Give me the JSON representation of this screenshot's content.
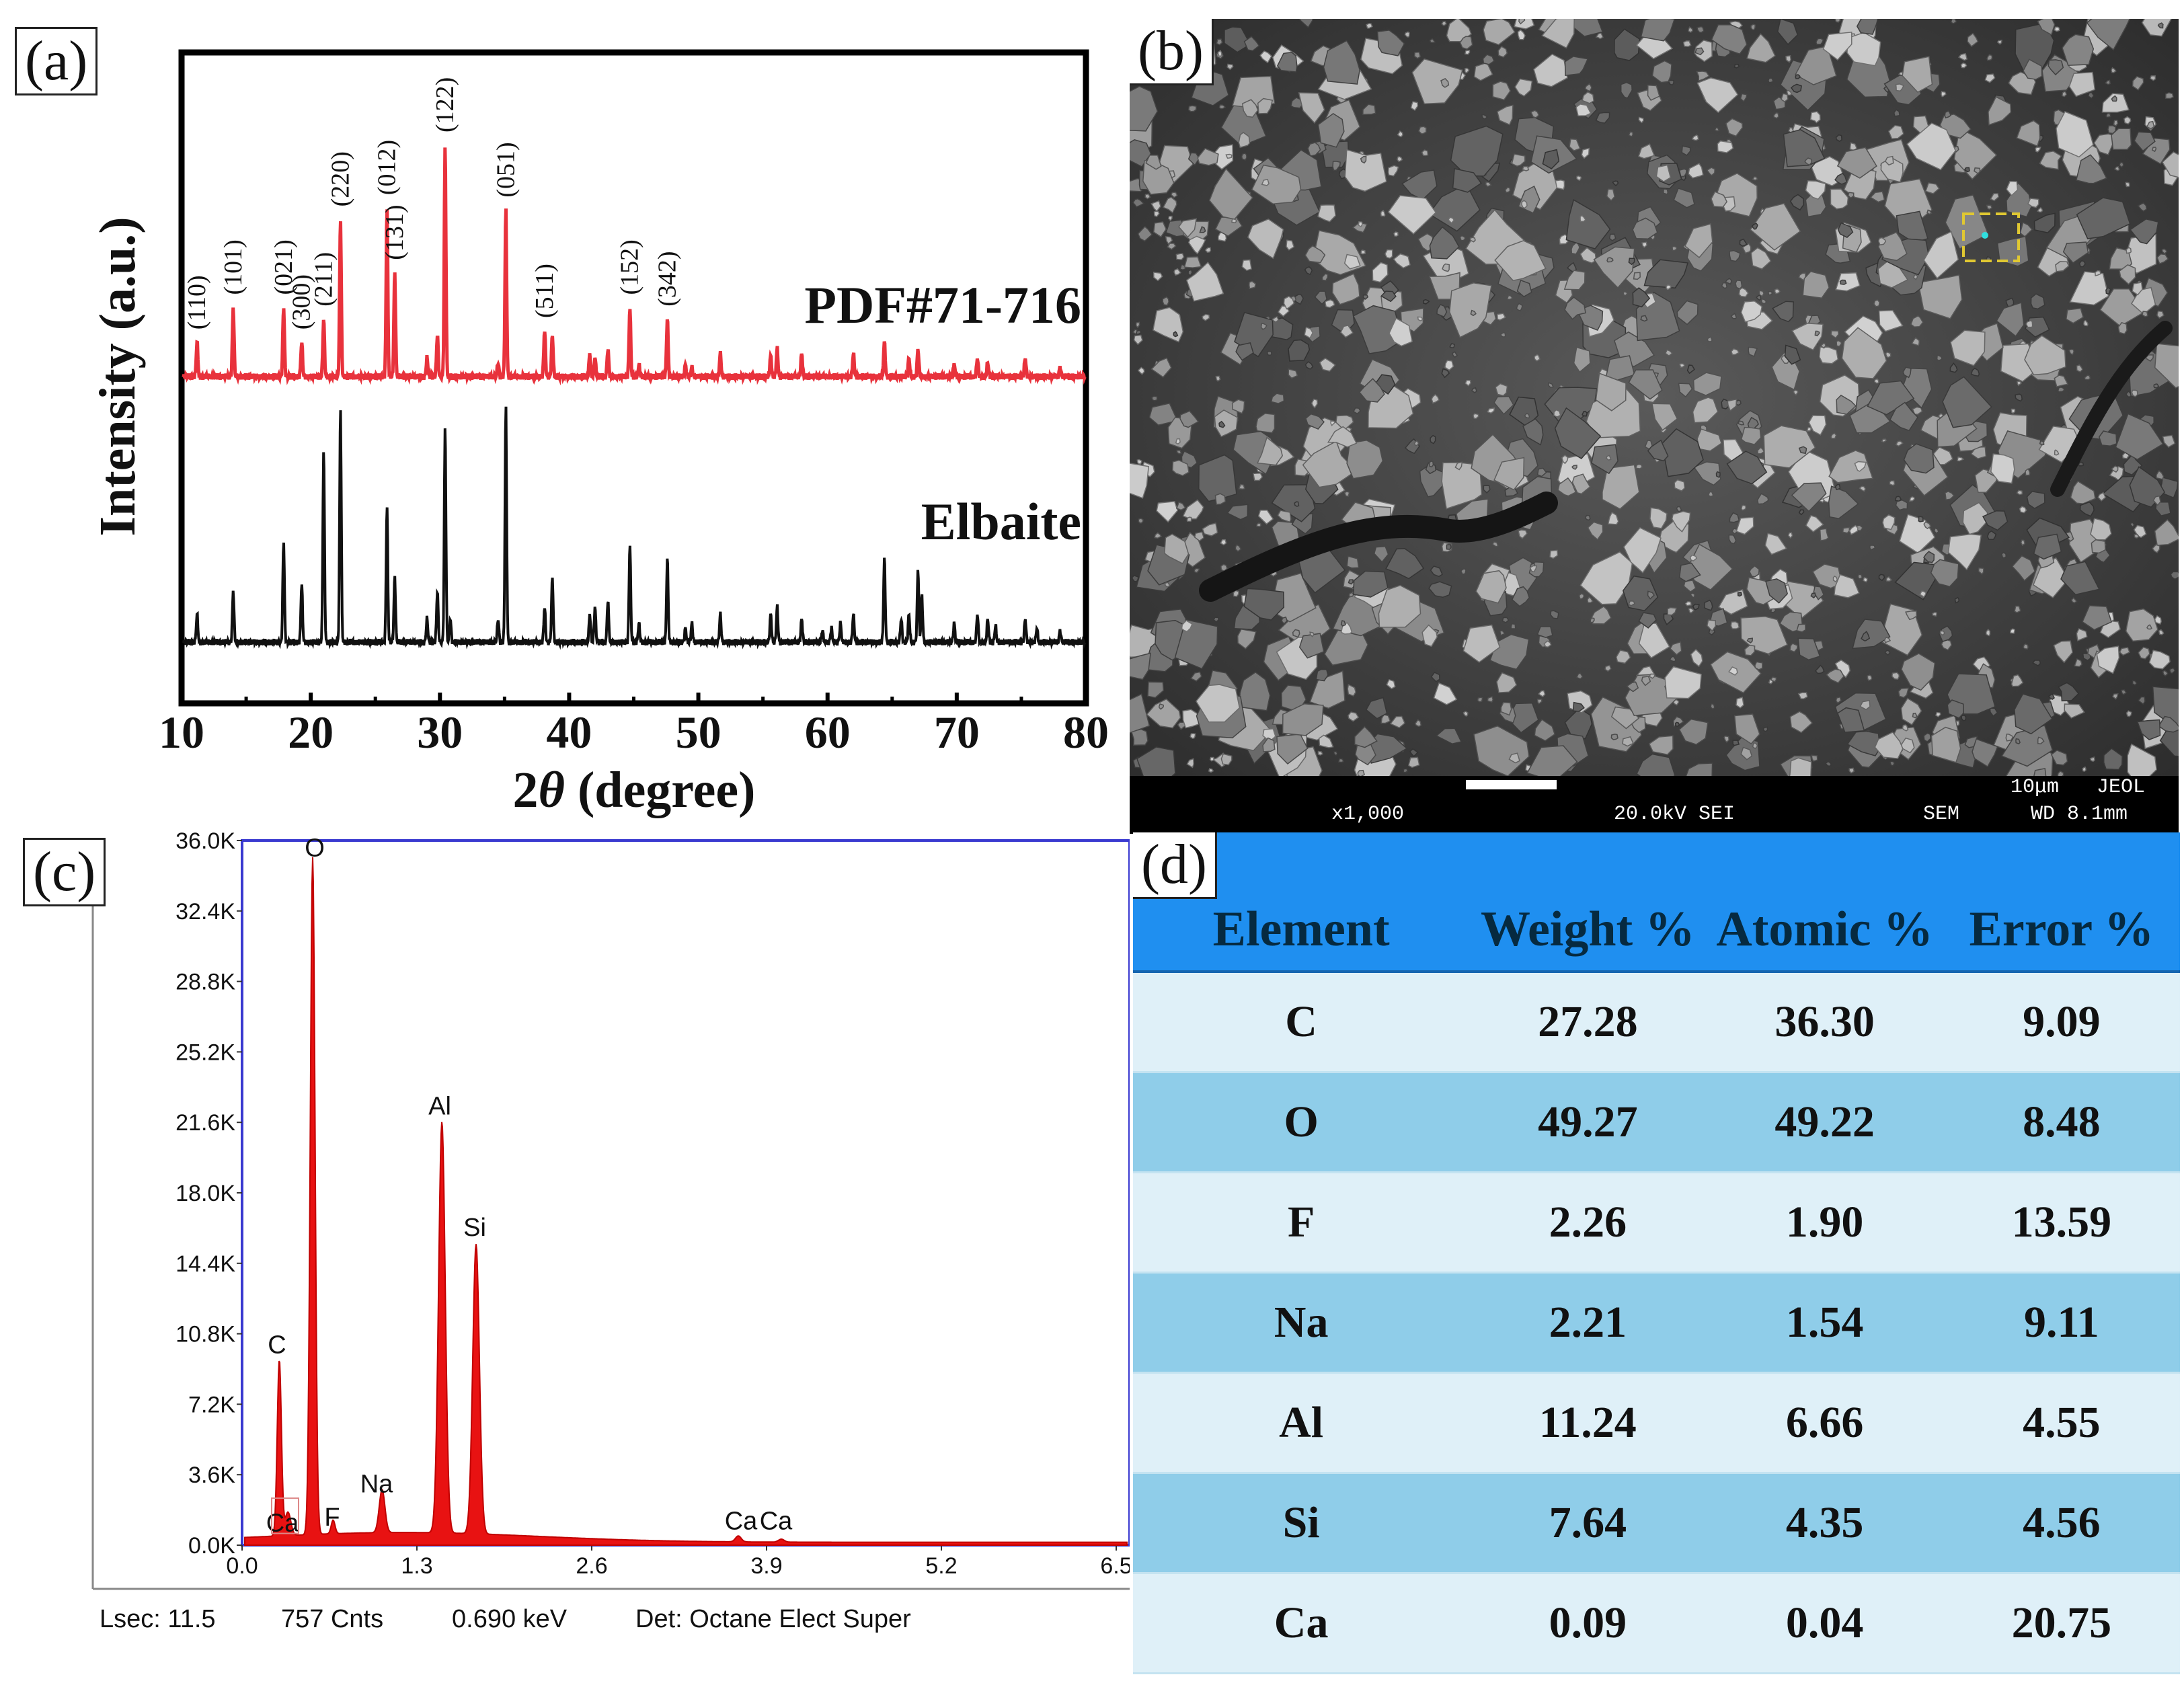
{
  "panel_labels": {
    "a": "(a)",
    "b": "(b)",
    "c": "(c)",
    "d": "(d)"
  },
  "colors": {
    "pdf_line": "#e8323c",
    "elbaite_line": "#111111",
    "eds_fill": "#e81212",
    "eds_frame": "#3a3ad0",
    "table_header": "#1f8ff0",
    "table_band": "#8fcde9",
    "table_light": "#dff0f8"
  },
  "chart_data": [
    {
      "type": "line",
      "id": "xrd",
      "xlabel": "2θ (degree)",
      "xlabel_parts": {
        "num": "2",
        "theta": "θ",
        "rest": " (degree)"
      },
      "ylabel": "Intensity (a.u.)",
      "xlim": [
        10,
        80
      ],
      "xticks": [
        "10",
        "20",
        "30",
        "40",
        "50",
        "60",
        "70",
        "80"
      ],
      "grid": false,
      "series": [
        {
          "name": "PDF#71-716",
          "color": "#e8323c",
          "baseline": 0.0,
          "peaks": [
            [
              11.2,
              0.15
            ],
            [
              14.0,
              0.3
            ],
            [
              17.9,
              0.3
            ],
            [
              19.3,
              0.15
            ],
            [
              21.0,
              0.25
            ],
            [
              22.3,
              0.68
            ],
            [
              25.9,
              0.73
            ],
            [
              26.5,
              0.45
            ],
            [
              29.0,
              0.08
            ],
            [
              29.8,
              0.18
            ],
            [
              30.4,
              1.0
            ],
            [
              34.5,
              0.06
            ],
            [
              35.1,
              0.72
            ],
            [
              38.1,
              0.2
            ],
            [
              38.7,
              0.18
            ],
            [
              41.6,
              0.1
            ],
            [
              42.0,
              0.08
            ],
            [
              43.0,
              0.12
            ],
            [
              44.7,
              0.3
            ],
            [
              45.4,
              0.05
            ],
            [
              47.6,
              0.25
            ],
            [
              49.0,
              0.05
            ],
            [
              49.5,
              0.04
            ],
            [
              51.7,
              0.1
            ],
            [
              55.6,
              0.09
            ],
            [
              56.1,
              0.12
            ],
            [
              58.0,
              0.1
            ],
            [
              62.0,
              0.1
            ],
            [
              64.4,
              0.15
            ],
            [
              66.3,
              0.08
            ],
            [
              67.0,
              0.12
            ],
            [
              69.8,
              0.05
            ],
            [
              71.6,
              0.08
            ],
            [
              72.4,
              0.06
            ],
            [
              75.3,
              0.08
            ],
            [
              78.0,
              0.04
            ]
          ],
          "miller_labels": [
            {
              "hkl": "(110)",
              "x": 11.2
            },
            {
              "hkl": "(101)",
              "x": 14.0
            },
            {
              "hkl": "(021)",
              "x": 17.9
            },
            {
              "hkl": "(300)",
              "x": 19.3
            },
            {
              "hkl": "(211)",
              "x": 21.0
            },
            {
              "hkl": "(220)",
              "x": 22.3
            },
            {
              "hkl": "(012)",
              "x": 25.9
            },
            {
              "hkl": "(131)",
              "x": 26.5
            },
            {
              "hkl": "(122)",
              "x": 30.4
            },
            {
              "hkl": "(051)",
              "x": 35.1
            },
            {
              "hkl": "(511)",
              "x": 38.1
            },
            {
              "hkl": "(152)",
              "x": 44.7
            },
            {
              "hkl": "(342)",
              "x": 47.6
            }
          ]
        },
        {
          "name": "Elbaite",
          "color": "#111111",
          "baseline": 0.0,
          "peaks": [
            [
              11.2,
              0.12
            ],
            [
              14.0,
              0.22
            ],
            [
              17.9,
              0.43
            ],
            [
              19.3,
              0.25
            ],
            [
              21.0,
              0.82
            ],
            [
              22.3,
              1.0
            ],
            [
              25.9,
              0.58
            ],
            [
              26.5,
              0.28
            ],
            [
              29.0,
              0.1
            ],
            [
              29.8,
              0.22
            ],
            [
              30.4,
              0.92
            ],
            [
              30.8,
              0.1
            ],
            [
              34.5,
              0.1
            ],
            [
              35.1,
              1.0
            ],
            [
              38.1,
              0.15
            ],
            [
              38.7,
              0.28
            ],
            [
              41.6,
              0.12
            ],
            [
              42.0,
              0.15
            ],
            [
              43.0,
              0.18
            ],
            [
              44.7,
              0.42
            ],
            [
              45.4,
              0.08
            ],
            [
              47.6,
              0.36
            ],
            [
              49.0,
              0.06
            ],
            [
              49.5,
              0.08
            ],
            [
              51.7,
              0.12
            ],
            [
              55.6,
              0.12
            ],
            [
              56.1,
              0.15
            ],
            [
              58.0,
              0.1
            ],
            [
              59.6,
              0.05
            ],
            [
              60.3,
              0.06
            ],
            [
              61.0,
              0.08
            ],
            [
              62.0,
              0.12
            ],
            [
              64.4,
              0.36
            ],
            [
              65.7,
              0.1
            ],
            [
              66.3,
              0.12
            ],
            [
              67.0,
              0.31
            ],
            [
              67.3,
              0.2
            ],
            [
              69.8,
              0.08
            ],
            [
              71.6,
              0.12
            ],
            [
              72.4,
              0.1
            ],
            [
              73.0,
              0.07
            ],
            [
              75.3,
              0.1
            ],
            [
              76.2,
              0.06
            ],
            [
              78.0,
              0.05
            ]
          ]
        }
      ]
    },
    {
      "type": "area",
      "id": "eds",
      "title": "",
      "xlabel": "",
      "ylabel": "",
      "xlim": [
        0.0,
        6.6
      ],
      "ylim": [
        0,
        36000
      ],
      "xticks": [
        "0.0",
        "1.3",
        "2.6",
        "3.9",
        "5.2",
        "6.5"
      ],
      "yticks": [
        "0.0K",
        "3.6K",
        "7.2K",
        "10.8K",
        "14.4K",
        "18.0K",
        "21.6K",
        "25.2K",
        "28.8K",
        "32.4K",
        "36.0K"
      ],
      "peaks": [
        {
          "element": "C",
          "x": 0.277,
          "counts": 9000
        },
        {
          "element": "Ca",
          "x": 0.341,
          "counts": 1200
        },
        {
          "element": "O",
          "x": 0.525,
          "counts": 34600
        },
        {
          "element": "F",
          "x": 0.677,
          "counts": 700
        },
        {
          "element": "Na",
          "x": 1.041,
          "counts": 2200
        },
        {
          "element": "Al",
          "x": 1.486,
          "counts": 21000
        },
        {
          "element": "Si",
          "x": 1.74,
          "counts": 14800
        },
        {
          "element": "Ca",
          "x": 3.69,
          "counts": 300
        },
        {
          "element": "Ca",
          "x": 4.01,
          "counts": 150
        }
      ],
      "peak_labels": [
        "C",
        "O",
        "Ca",
        "F",
        "Na",
        "Al",
        "Si",
        "Ca",
        "Ca"
      ],
      "footer": {
        "lsec": "Lsec: 11.5",
        "cnts": "757 Cnts",
        "kev": "0.690 keV",
        "det": "Det: Octane Elect Super"
      }
    }
  ],
  "sem": {
    "scale": "10μm",
    "maker": "JEOL",
    "mag": "x1,000",
    "kv": "20.0kV SEI",
    "mode": "SEM",
    "wd": "WD 8.1mm"
  },
  "table": {
    "headers": [
      "Element",
      "Weight %",
      "Atomic %",
      "Error %"
    ],
    "rows": [
      [
        "C",
        "27.28",
        "36.30",
        "9.09"
      ],
      [
        "O",
        "49.27",
        "49.22",
        "8.48"
      ],
      [
        "F",
        "2.26",
        "1.90",
        "13.59"
      ],
      [
        "Na",
        "2.21",
        "1.54",
        "9.11"
      ],
      [
        "Al",
        "11.24",
        "6.66",
        "4.55"
      ],
      [
        "Si",
        "7.64",
        "4.35",
        "4.56"
      ],
      [
        "Ca",
        "0.09",
        "0.04",
        "20.75"
      ]
    ]
  }
}
